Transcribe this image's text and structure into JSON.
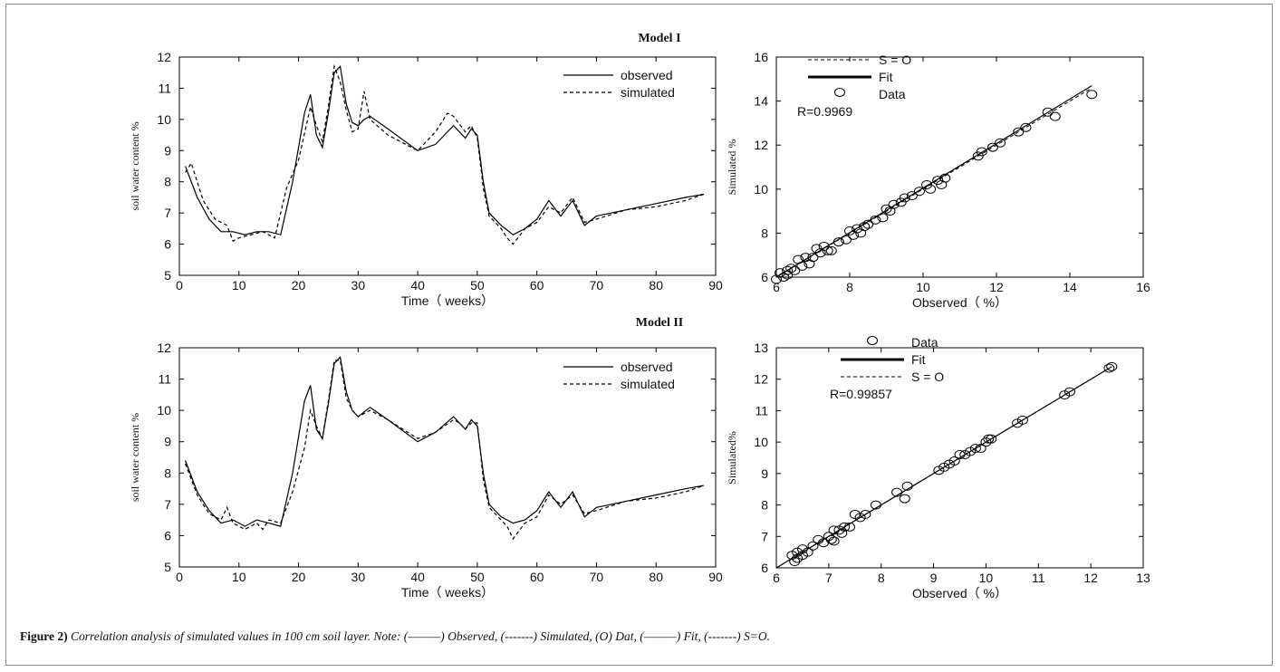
{
  "caption": {
    "label": "Figure 2)",
    "text": " Correlation analysis of simulated values in 100 cm soil layer. Note: (———) Observed, (-------) Simulated, (O) Dat, (———) Fit, (-------) S=O."
  },
  "chart_data": [
    {
      "type": "line",
      "title": "Model I",
      "xlabel": "Time（ weeks）",
      "ylabel": "soil water content %",
      "xlim": [
        0,
        90
      ],
      "ylim": [
        5,
        12
      ],
      "xticks": [
        0,
        10,
        20,
        30,
        40,
        50,
        60,
        70,
        80,
        90
      ],
      "yticks": [
        5,
        6,
        7,
        8,
        9,
        10,
        11,
        12
      ],
      "legend_position": "top-right",
      "series": [
        {
          "name": "observed",
          "style": "solid",
          "x": [
            1,
            3,
            5,
            7,
            9,
            11,
            13,
            15,
            17,
            19,
            21,
            22,
            23,
            24,
            25,
            26,
            27,
            28,
            29,
            30,
            31,
            32,
            35,
            40,
            43,
            46,
            48,
            49,
            50,
            51,
            52,
            54,
            56,
            58,
            60,
            62,
            64,
            66,
            68,
            70,
            75,
            80,
            85,
            88
          ],
          "y": [
            8.5,
            7.5,
            6.8,
            6.4,
            6.4,
            6.3,
            6.4,
            6.4,
            6.3,
            8.0,
            10.2,
            10.8,
            9.5,
            9.1,
            10.2,
            11.5,
            11.7,
            10.5,
            9.9,
            9.8,
            10.0,
            10.1,
            9.7,
            9.0,
            9.2,
            9.8,
            9.4,
            9.7,
            9.5,
            8.0,
            7.0,
            6.6,
            6.3,
            6.5,
            6.8,
            7.4,
            6.9,
            7.4,
            6.6,
            6.9,
            7.1,
            7.3,
            7.5,
            7.6
          ]
        },
        {
          "name": "simulated",
          "style": "dashed",
          "x": [
            1,
            2,
            4,
            6,
            8,
            9,
            10,
            12,
            14,
            16,
            18,
            20,
            22,
            23,
            24,
            25,
            26,
            27,
            28,
            29,
            30,
            31,
            32,
            35,
            40,
            43,
            45,
            46,
            48,
            49,
            50,
            51,
            52,
            54,
            55,
            56,
            58,
            60,
            62,
            64,
            66,
            68,
            70,
            75,
            80,
            85,
            88
          ],
          "y": [
            8.3,
            8.6,
            7.4,
            6.8,
            6.6,
            6.1,
            6.2,
            6.3,
            6.4,
            6.2,
            7.8,
            8.7,
            10.4,
            9.8,
            9.3,
            10.4,
            11.7,
            11.2,
            10.3,
            9.6,
            9.7,
            10.9,
            10.0,
            9.5,
            9.0,
            9.6,
            10.2,
            10.1,
            9.6,
            9.8,
            9.4,
            7.8,
            6.9,
            6.5,
            6.2,
            6.0,
            6.5,
            6.7,
            7.2,
            7.0,
            7.5,
            6.7,
            6.8,
            7.1,
            7.2,
            7.4,
            7.6
          ]
        }
      ]
    },
    {
      "type": "scatter",
      "title": "",
      "xlabel": "Observed（ %）",
      "ylabel": "Simulated %",
      "xlim": [
        6,
        16
      ],
      "ylim": [
        6,
        16
      ],
      "xticks": [
        6,
        8,
        10,
        12,
        14,
        16
      ],
      "yticks": [
        6,
        8,
        10,
        12,
        14,
        16
      ],
      "legend_position": "top-left",
      "legend": [
        "S = O",
        "Fit",
        "Data"
      ],
      "annotation": "R=0.9969",
      "fit_line": [
        [
          6,
          6
        ],
        [
          14.6,
          14.7
        ]
      ],
      "x": [
        6.0,
        6.1,
        6.2,
        6.3,
        6.3,
        6.4,
        6.5,
        6.6,
        6.7,
        6.8,
        6.9,
        7.0,
        7.1,
        7.2,
        7.3,
        7.4,
        7.5,
        7.7,
        7.9,
        8.0,
        8.1,
        8.2,
        8.3,
        8.4,
        8.5,
        8.7,
        8.9,
        9.0,
        9.1,
        9.2,
        9.4,
        9.5,
        9.7,
        9.9,
        10.1,
        10.2,
        10.4,
        10.5,
        10.6,
        11.5,
        11.6,
        11.9,
        12.1,
        12.6,
        12.8,
        13.4,
        13.6,
        14.6
      ],
      "y": [
        5.9,
        6.2,
        6.0,
        6.3,
        6.1,
        6.4,
        6.3,
        6.8,
        6.5,
        6.9,
        6.6,
        6.9,
        7.3,
        7.1,
        7.4,
        7.2,
        7.2,
        7.6,
        7.7,
        8.1,
        7.9,
        8.2,
        8.0,
        8.3,
        8.4,
        8.6,
        8.7,
        9.1,
        9.0,
        9.3,
        9.4,
        9.6,
        9.7,
        9.9,
        10.2,
        10.0,
        10.4,
        10.2,
        10.5,
        11.5,
        11.7,
        11.9,
        12.1,
        12.6,
        12.8,
        13.5,
        13.3,
        14.3
      ]
    },
    {
      "type": "line",
      "title": "Model II",
      "xlabel": "Time（ weeks）",
      "ylabel": "soil water content %",
      "xlim": [
        0,
        90
      ],
      "ylim": [
        5,
        12
      ],
      "xticks": [
        0,
        10,
        20,
        30,
        40,
        50,
        60,
        70,
        80,
        90
      ],
      "yticks": [
        5,
        6,
        7,
        8,
        9,
        10,
        11,
        12
      ],
      "legend_position": "top-right",
      "series": [
        {
          "name": "observed",
          "style": "solid",
          "x": [
            1,
            3,
            5,
            7,
            9,
            11,
            13,
            15,
            17,
            19,
            21,
            22,
            23,
            24,
            25,
            26,
            27,
            28,
            29,
            30,
            32,
            35,
            40,
            43,
            46,
            48,
            49,
            50,
            51,
            52,
            54,
            56,
            58,
            60,
            62,
            64,
            66,
            68,
            70,
            75,
            80,
            85,
            88
          ],
          "y": [
            8.4,
            7.4,
            6.8,
            6.4,
            6.5,
            6.3,
            6.5,
            6.4,
            6.3,
            8.0,
            10.3,
            10.8,
            9.4,
            9.1,
            10.2,
            11.5,
            11.7,
            10.6,
            10.0,
            9.8,
            10.1,
            9.7,
            9.0,
            9.3,
            9.8,
            9.4,
            9.7,
            9.5,
            8.0,
            7.0,
            6.6,
            6.4,
            6.5,
            6.8,
            7.4,
            6.9,
            7.4,
            6.6,
            6.9,
            7.1,
            7.3,
            7.5,
            7.6
          ]
        },
        {
          "name": "simulated",
          "style": "dashed",
          "x": [
            1,
            3,
            5,
            7,
            8,
            9,
            10,
            11,
            13,
            14,
            15,
            17,
            19,
            21,
            22,
            23,
            24,
            25,
            26,
            27,
            28,
            29,
            30,
            32,
            35,
            40,
            43,
            46,
            47,
            48,
            49,
            50,
            51,
            52,
            54,
            55,
            56,
            58,
            60,
            62,
            64,
            66,
            68,
            70,
            75,
            80,
            85,
            88
          ],
          "y": [
            8.3,
            7.3,
            6.7,
            6.5,
            6.9,
            6.4,
            6.3,
            6.2,
            6.4,
            6.2,
            6.5,
            6.4,
            7.4,
            8.8,
            10.0,
            9.5,
            9.1,
            10.3,
            11.6,
            11.6,
            10.4,
            10.0,
            9.8,
            10.0,
            9.7,
            9.1,
            9.3,
            9.7,
            9.6,
            9.4,
            9.6,
            9.6,
            7.8,
            6.9,
            6.5,
            6.3,
            5.9,
            6.4,
            6.6,
            7.3,
            7.0,
            7.3,
            6.7,
            6.8,
            7.1,
            7.2,
            7.4,
            7.6
          ]
        }
      ]
    },
    {
      "type": "scatter",
      "title": "",
      "xlabel": "Observed（ %）",
      "ylabel": "Simulated%",
      "xlim": [
        6,
        13
      ],
      "ylim": [
        6,
        13
      ],
      "xticks": [
        6,
        7,
        8,
        9,
        10,
        11,
        12,
        13
      ],
      "yticks": [
        6,
        7,
        8,
        9,
        10,
        11,
        12,
        13
      ],
      "legend_position": "top-left",
      "legend": [
        "Data",
        "Fit",
        "S = O"
      ],
      "annotation": "R=0.99857",
      "fit_line": [
        [
          6,
          6
        ],
        [
          12.4,
          12.4
        ]
      ],
      "x": [
        6.3,
        6.35,
        6.4,
        6.4,
        6.5,
        6.5,
        6.6,
        6.7,
        6.8,
        6.9,
        7.0,
        7.05,
        7.1,
        7.1,
        7.2,
        7.25,
        7.3,
        7.4,
        7.5,
        7.6,
        7.7,
        7.9,
        8.3,
        8.45,
        8.5,
        9.1,
        9.2,
        9.3,
        9.4,
        9.5,
        9.6,
        9.7,
        9.8,
        9.9,
        10.0,
        10.05,
        10.1,
        10.6,
        10.7,
        11.5,
        11.6,
        12.35,
        12.4
      ],
      "y": [
        6.4,
        6.2,
        6.5,
        6.3,
        6.6,
        6.4,
        6.5,
        6.7,
        6.9,
        6.8,
        7.0,
        6.9,
        7.2,
        6.85,
        7.2,
        7.1,
        7.3,
        7.3,
        7.7,
        7.6,
        7.7,
        8.0,
        8.4,
        8.2,
        8.6,
        9.1,
        9.2,
        9.3,
        9.4,
        9.6,
        9.6,
        9.7,
        9.8,
        9.8,
        10.0,
        10.1,
        10.1,
        10.6,
        10.7,
        11.5,
        11.6,
        12.35,
        12.4
      ]
    }
  ]
}
